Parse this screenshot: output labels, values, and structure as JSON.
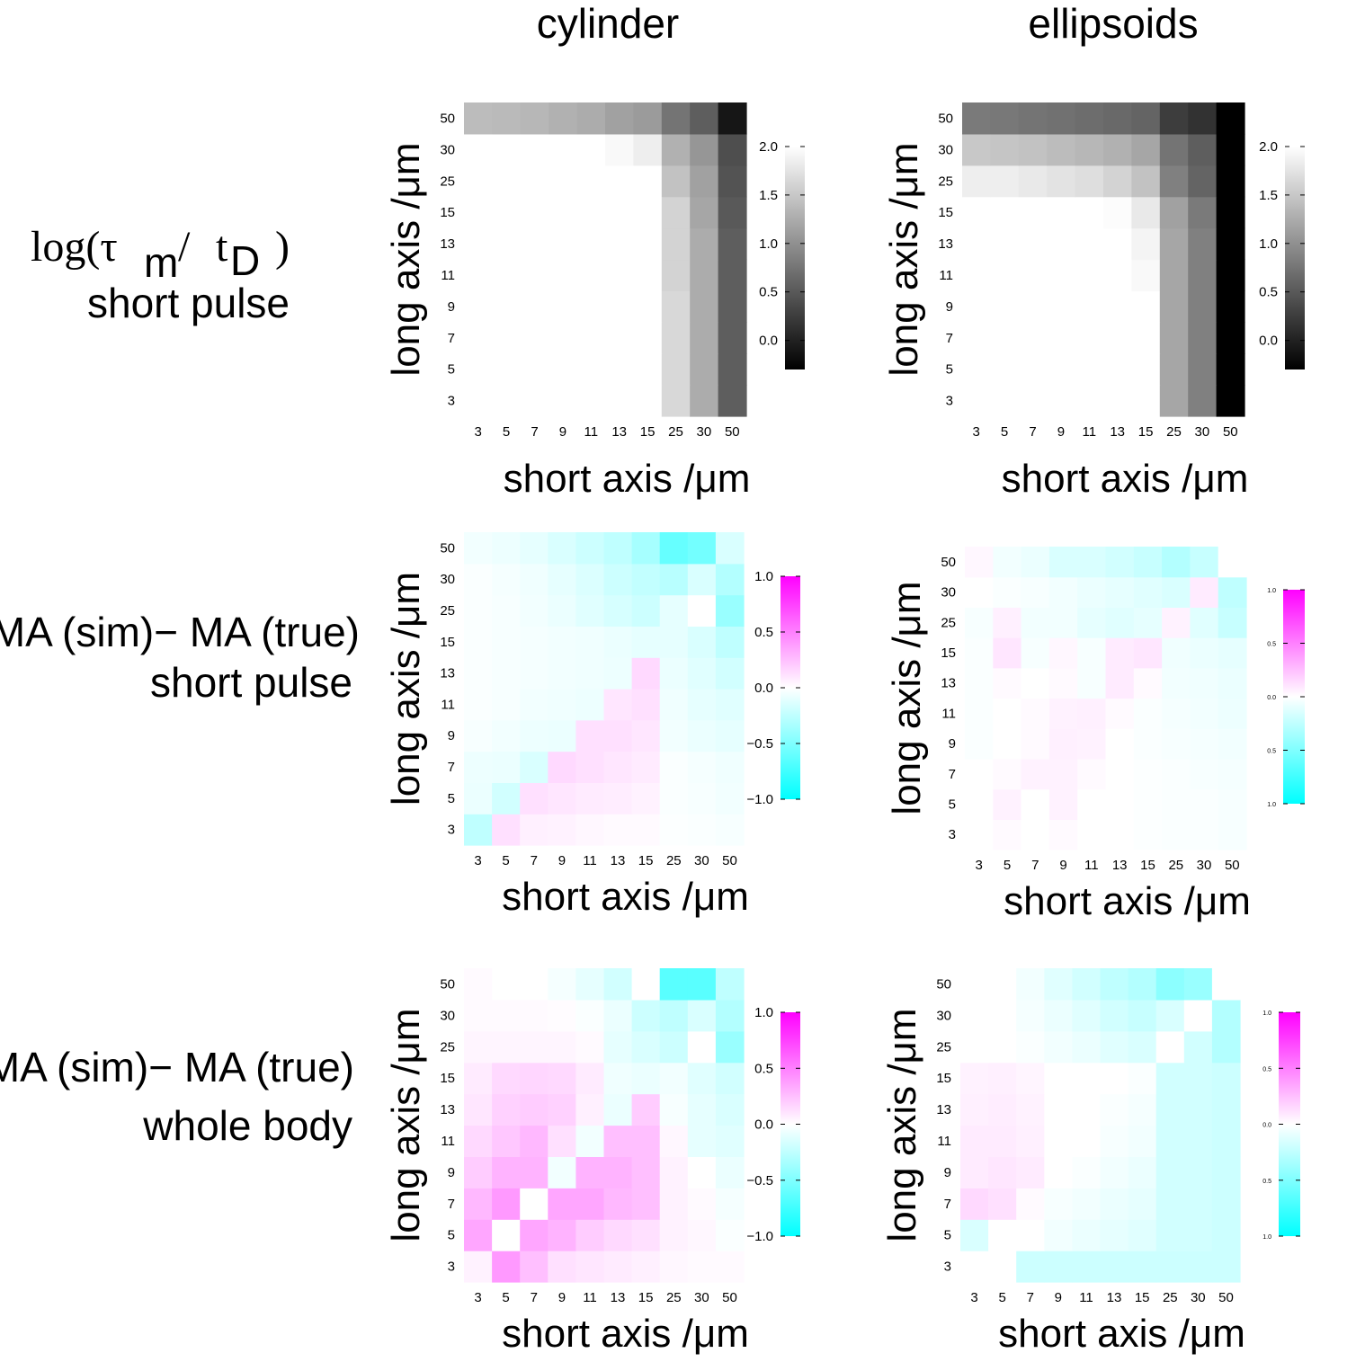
{
  "columns": {
    "left": "cylinder",
    "right": "ellipsoids"
  },
  "row_labels": [
    {
      "line1_prefix": "log(",
      "line1_tau": "τ",
      "line1_sub_m": "m",
      "line1_slash": "/",
      "line1_t": "t",
      "line1_sub_D": "D",
      "line1_close": ")",
      "line2": "short pulse"
    },
    {
      "line1": "MA (sim)− MA (true)",
      "line2": "short pulse"
    },
    {
      "line1": "MA (sim)− MA (true)",
      "line2": "whole body"
    }
  ],
  "xlabel": "short axis /μm",
  "ylabel": "long axis /μm",
  "ticks": [
    "3",
    "5",
    "7",
    "9",
    "11",
    "13",
    "15",
    "25",
    "30",
    "50"
  ],
  "colors": {
    "neg": "#00ffff",
    "pos": "#ff00ff",
    "mid": "#ffffff"
  },
  "chart_data": [
    {
      "type": "heatmap",
      "id": "tau-cylinder",
      "colormap": "gray",
      "vlim": [
        -0.3,
        2.0
      ],
      "colorbar_ticks": [
        "2.0",
        "1.5",
        "1.0",
        "0.5",
        "0.0"
      ],
      "x": [
        "3",
        "5",
        "7",
        "9",
        "11",
        "13",
        "15",
        "25",
        "30",
        "50"
      ],
      "y": [
        "3",
        "5",
        "7",
        "9",
        "11",
        "13",
        "15",
        "25",
        "30",
        "50"
      ],
      "values": [
        [
          2.0,
          2.0,
          2.0,
          2.0,
          2.0,
          2.0,
          2.0,
          1.65,
          1.25,
          0.55
        ],
        [
          2.0,
          2.0,
          2.0,
          2.0,
          2.0,
          2.0,
          2.0,
          1.65,
          1.25,
          0.55
        ],
        [
          2.0,
          2.0,
          2.0,
          2.0,
          2.0,
          2.0,
          2.0,
          1.65,
          1.25,
          0.55
        ],
        [
          2.0,
          2.0,
          2.0,
          2.0,
          2.0,
          2.0,
          2.0,
          1.65,
          1.25,
          0.55
        ],
        [
          2.0,
          2.0,
          2.0,
          2.0,
          2.0,
          2.0,
          2.0,
          1.6,
          1.25,
          0.55
        ],
        [
          2.0,
          2.0,
          2.0,
          2.0,
          2.0,
          2.0,
          2.0,
          1.6,
          1.25,
          0.55
        ],
        [
          2.0,
          2.0,
          2.0,
          2.0,
          2.0,
          2.0,
          2.0,
          1.6,
          1.2,
          0.5
        ],
        [
          2.0,
          2.0,
          2.0,
          2.0,
          2.0,
          2.0,
          2.0,
          1.45,
          1.15,
          0.45
        ],
        [
          2.0,
          2.0,
          2.0,
          2.0,
          2.0,
          1.95,
          1.85,
          1.3,
          1.05,
          0.4
        ],
        [
          1.4,
          1.38,
          1.35,
          1.3,
          1.25,
          1.15,
          1.1,
          0.75,
          0.55,
          -0.1
        ]
      ]
    },
    {
      "type": "heatmap",
      "id": "tau-ellipsoid",
      "colormap": "gray",
      "vlim": [
        -0.3,
        2.0
      ],
      "colorbar_ticks": [
        "2.0",
        "1.5",
        "1.0",
        "0.5",
        "0.0"
      ],
      "x": [
        "3",
        "5",
        "7",
        "9",
        "11",
        "13",
        "15",
        "25",
        "30",
        "50"
      ],
      "y": [
        "3",
        "5",
        "7",
        "9",
        "11",
        "13",
        "15",
        "25",
        "30",
        "50"
      ],
      "values": [
        [
          2.0,
          2.0,
          2.0,
          2.0,
          2.0,
          2.0,
          2.0,
          1.2,
          0.85,
          -0.3
        ],
        [
          2.0,
          2.0,
          2.0,
          2.0,
          2.0,
          2.0,
          2.0,
          1.2,
          0.85,
          -0.3
        ],
        [
          2.0,
          2.0,
          2.0,
          2.0,
          2.0,
          2.0,
          2.0,
          1.2,
          0.85,
          -0.3
        ],
        [
          2.0,
          2.0,
          2.0,
          2.0,
          2.0,
          2.0,
          2.0,
          1.2,
          0.85,
          -0.3
        ],
        [
          2.0,
          2.0,
          2.0,
          2.0,
          2.0,
          2.0,
          1.95,
          1.2,
          0.85,
          -0.3
        ],
        [
          2.0,
          2.0,
          2.0,
          2.0,
          2.0,
          2.0,
          1.9,
          1.2,
          0.85,
          -0.3
        ],
        [
          2.0,
          2.0,
          2.0,
          2.0,
          2.0,
          1.97,
          1.8,
          1.15,
          0.8,
          -0.3
        ],
        [
          1.85,
          1.85,
          1.8,
          1.75,
          1.7,
          1.6,
          1.45,
          0.85,
          0.6,
          -0.3
        ],
        [
          1.5,
          1.48,
          1.45,
          1.4,
          1.35,
          1.3,
          1.2,
          0.75,
          0.55,
          -0.3
        ],
        [
          0.8,
          0.78,
          0.75,
          0.72,
          0.68,
          0.65,
          0.6,
          0.25,
          0.15,
          -0.3
        ]
      ]
    },
    {
      "type": "heatmap",
      "id": "ma-cylinder-short",
      "colormap": "cyan-white-magenta",
      "vlim": [
        -1.0,
        1.0
      ],
      "colorbar_ticks": [
        "1.0",
        "0.5",
        "0.0",
        "−0.5",
        "−1.0"
      ],
      "x": [
        "3",
        "5",
        "7",
        "9",
        "11",
        "13",
        "15",
        "25",
        "30",
        "50"
      ],
      "y": [
        "3",
        "5",
        "7",
        "9",
        "11",
        "13",
        "15",
        "25",
        "30",
        "50"
      ],
      "values": [
        [
          -0.25,
          0.12,
          0.06,
          0.05,
          0.03,
          0.02,
          0.02,
          -0.01,
          -0.02,
          -0.03
        ],
        [
          -0.08,
          -0.18,
          0.12,
          0.1,
          0.08,
          0.07,
          0.05,
          -0.02,
          -0.03,
          -0.05
        ],
        [
          -0.07,
          -0.08,
          -0.15,
          0.15,
          0.12,
          0.1,
          0.08,
          -0.02,
          -0.04,
          -0.06
        ],
        [
          -0.03,
          -0.05,
          -0.07,
          -0.08,
          0.12,
          0.12,
          0.1,
          -0.05,
          -0.08,
          -0.1
        ],
        [
          -0.02,
          -0.03,
          -0.05,
          -0.06,
          -0.07,
          0.1,
          0.12,
          -0.06,
          -0.1,
          -0.12
        ],
        [
          -0.02,
          -0.03,
          -0.04,
          -0.05,
          -0.06,
          -0.07,
          0.15,
          -0.08,
          -0.12,
          -0.18
        ],
        [
          -0.02,
          -0.03,
          -0.04,
          -0.05,
          -0.06,
          -0.08,
          -0.1,
          -0.1,
          -0.15,
          -0.25
        ],
        [
          -0.02,
          -0.03,
          -0.05,
          -0.08,
          -0.12,
          -0.16,
          -0.2,
          -0.1,
          0.0,
          -0.4
        ],
        [
          -0.02,
          -0.04,
          -0.06,
          -0.1,
          -0.14,
          -0.2,
          -0.24,
          -0.28,
          -0.15,
          -0.3
        ],
        [
          -0.05,
          -0.07,
          -0.1,
          -0.15,
          -0.2,
          -0.25,
          -0.35,
          -0.6,
          -0.55,
          -0.15
        ]
      ]
    },
    {
      "type": "heatmap",
      "id": "ma-ellipsoid-short",
      "colormap": "cyan-white-magenta",
      "vlim": [
        -1.0,
        1.0
      ],
      "colorbar_ticks": [
        "1.0",
        "0.5",
        "0.0",
        "0.5",
        "1.0"
      ],
      "x": [
        "3",
        "5",
        "7",
        "9",
        "11",
        "13",
        "15",
        "25",
        "30",
        "50"
      ],
      "y": [
        "3",
        "5",
        "7",
        "9",
        "11",
        "13",
        "15",
        "25",
        "30",
        "50"
      ],
      "values": [
        [
          0.0,
          0.02,
          0.0,
          0.02,
          0.0,
          0.0,
          -0.01,
          -0.02,
          -0.02,
          -0.03
        ],
        [
          0.0,
          0.05,
          0.0,
          0.05,
          0.0,
          0.0,
          -0.01,
          -0.02,
          -0.02,
          -0.03
        ],
        [
          0.0,
          0.02,
          0.05,
          0.05,
          0.02,
          0.0,
          -0.01,
          -0.02,
          -0.03,
          -0.04
        ],
        [
          -0.02,
          0.0,
          0.02,
          0.06,
          0.05,
          0.0,
          -0.02,
          -0.03,
          -0.04,
          -0.05
        ],
        [
          -0.02,
          0.0,
          0.02,
          0.05,
          0.06,
          0.02,
          -0.02,
          -0.04,
          -0.05,
          -0.07
        ],
        [
          -0.02,
          0.02,
          0.0,
          0.02,
          -0.03,
          0.08,
          0.02,
          -0.05,
          -0.06,
          -0.08
        ],
        [
          -0.02,
          0.1,
          -0.03,
          0.03,
          -0.03,
          0.08,
          0.1,
          -0.06,
          -0.08,
          -0.1
        ],
        [
          -0.03,
          0.06,
          -0.05,
          -0.05,
          -0.1,
          -0.12,
          -0.1,
          0.05,
          -0.12,
          -0.22
        ],
        [
          0.0,
          -0.02,
          -0.03,
          -0.05,
          -0.08,
          -0.1,
          -0.12,
          -0.15,
          0.08,
          -0.25
        ],
        [
          0.03,
          -0.05,
          -0.08,
          -0.15,
          -0.15,
          -0.18,
          -0.22,
          -0.3,
          -0.22,
          0.0
        ]
      ]
    },
    {
      "type": "heatmap",
      "id": "ma-cylinder-whole",
      "colormap": "cyan-white-magenta",
      "vlim": [
        -1.0,
        1.0
      ],
      "colorbar_ticks": [
        "1.0",
        "0.5",
        "0.0",
        "−0.5",
        "−1.0"
      ],
      "x": [
        "3",
        "5",
        "7",
        "9",
        "11",
        "13",
        "15",
        "25",
        "30",
        "50"
      ],
      "y": [
        "3",
        "5",
        "7",
        "9",
        "11",
        "13",
        "15",
        "25",
        "30",
        "50"
      ],
      "values": [
        [
          0.05,
          0.4,
          0.25,
          0.12,
          0.1,
          0.08,
          0.06,
          0.03,
          0.02,
          0.02
        ],
        [
          0.35,
          0.0,
          0.35,
          0.3,
          0.2,
          0.15,
          0.12,
          0.05,
          0.03,
          -0.02
        ],
        [
          0.28,
          0.4,
          0.0,
          0.35,
          0.35,
          0.28,
          0.25,
          0.05,
          0.02,
          -0.04
        ],
        [
          0.2,
          0.3,
          0.3,
          -0.05,
          0.3,
          0.3,
          0.25,
          0.05,
          0.0,
          -0.08
        ],
        [
          0.15,
          0.22,
          0.28,
          0.12,
          -0.05,
          0.25,
          0.25,
          0.03,
          -0.1,
          -0.12
        ],
        [
          0.1,
          0.18,
          0.2,
          0.18,
          0.06,
          -0.08,
          0.2,
          -0.03,
          -0.1,
          -0.15
        ],
        [
          0.08,
          0.15,
          0.16,
          0.15,
          0.08,
          -0.06,
          -0.08,
          -0.05,
          -0.12,
          -0.18
        ],
        [
          0.04,
          0.04,
          0.04,
          0.04,
          0.02,
          -0.1,
          -0.15,
          -0.2,
          0.0,
          -0.4
        ],
        [
          0.02,
          0.02,
          0.02,
          0.01,
          -0.02,
          -0.08,
          -0.2,
          -0.25,
          -0.15,
          -0.3
        ],
        [
          0.02,
          0.0,
          0.0,
          -0.04,
          -0.1,
          -0.18,
          0.0,
          -0.65,
          -0.65,
          -0.25
        ]
      ]
    },
    {
      "type": "heatmap",
      "id": "ma-ellipsoid-whole",
      "colormap": "cyan-white-magenta",
      "vlim": [
        -1.0,
        1.0
      ],
      "colorbar_ticks": [
        "1.0",
        "0.5",
        "0.0",
        "0.5",
        "1.0"
      ],
      "x": [
        "3",
        "5",
        "7",
        "9",
        "11",
        "13",
        "15",
        "25",
        "30",
        "50"
      ],
      "y": [
        "3",
        "5",
        "7",
        "9",
        "11",
        "13",
        "15",
        "25",
        "30",
        "50"
      ],
      "values": [
        [
          0.0,
          0.0,
          -0.2,
          -0.2,
          -0.2,
          -0.2,
          -0.2,
          -0.2,
          -0.2,
          -0.2
        ],
        [
          -0.15,
          0.0,
          0.0,
          -0.05,
          -0.08,
          -0.1,
          -0.12,
          -0.18,
          -0.18,
          -0.2
        ],
        [
          0.15,
          0.12,
          0.02,
          -0.03,
          -0.05,
          -0.08,
          -0.1,
          -0.18,
          -0.18,
          -0.2
        ],
        [
          0.08,
          0.1,
          0.08,
          0.0,
          -0.02,
          -0.05,
          -0.08,
          -0.18,
          -0.18,
          -0.2
        ],
        [
          0.08,
          0.08,
          0.06,
          0.0,
          0.0,
          -0.03,
          -0.05,
          -0.18,
          -0.18,
          -0.2
        ],
        [
          0.06,
          0.07,
          0.05,
          0.0,
          0.0,
          -0.02,
          -0.04,
          -0.18,
          -0.18,
          -0.2
        ],
        [
          0.05,
          0.06,
          0.04,
          0.0,
          0.0,
          0.0,
          -0.02,
          -0.18,
          -0.18,
          -0.2
        ],
        [
          0.0,
          0.0,
          -0.02,
          -0.05,
          -0.08,
          -0.12,
          -0.15,
          0.0,
          -0.18,
          -0.3
        ],
        [
          0.0,
          0.0,
          -0.04,
          -0.08,
          -0.12,
          -0.18,
          -0.22,
          -0.15,
          0.0,
          -0.3
        ],
        [
          0.0,
          0.0,
          -0.05,
          -0.12,
          -0.18,
          -0.25,
          -0.3,
          -0.45,
          -0.4,
          0.0
        ]
      ]
    }
  ]
}
